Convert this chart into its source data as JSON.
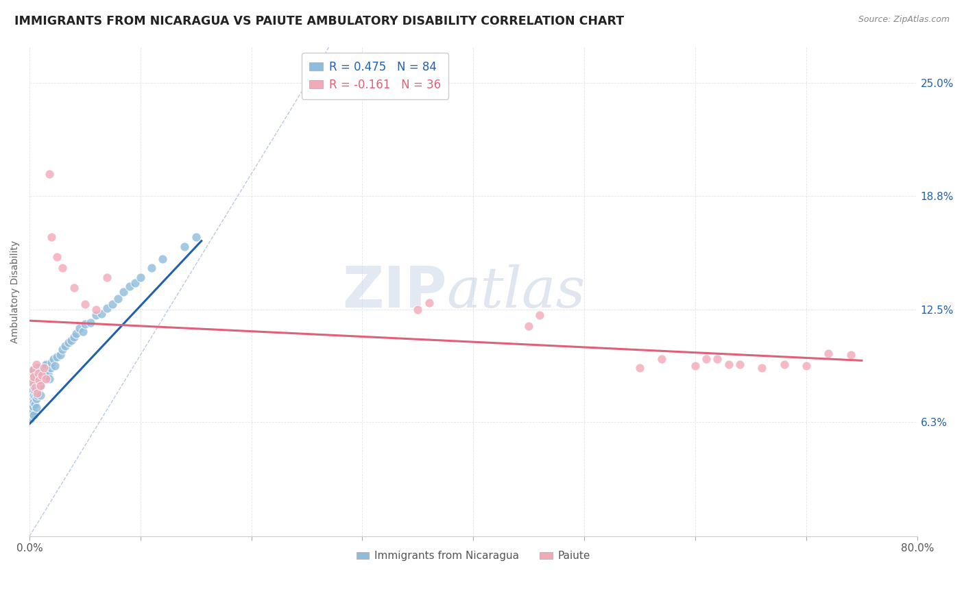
{
  "title": "IMMIGRANTS FROM NICARAGUA VS PAIUTE AMBULATORY DISABILITY CORRELATION CHART",
  "source": "Source: ZipAtlas.com",
  "ylabel": "Ambulatory Disability",
  "ytick_labels": [
    "6.3%",
    "12.5%",
    "18.8%",
    "25.0%"
  ],
  "ytick_values": [
    0.063,
    0.125,
    0.188,
    0.25
  ],
  "legend_blue": "R = 0.475   N = 84",
  "legend_pink": "R = -0.161   N = 36",
  "legend_label_blue": "Immigrants from Nicaragua",
  "legend_label_pink": "Paiute",
  "blue_color": "#8fbcdb",
  "pink_color": "#f2aab8",
  "blue_line_color": "#2060b0",
  "pink_line_color": "#e0607a",
  "diag_line_color": "#b0c0d8",
  "xlim": [
    0.0,
    0.8
  ],
  "ylim": [
    0.0,
    0.27
  ],
  "blue_trendline": [
    [
      0.0,
      0.062
    ],
    [
      0.155,
      0.163
    ]
  ],
  "pink_trendline": [
    [
      0.0,
      0.119
    ],
    [
      0.75,
      0.097
    ]
  ],
  "diag_line": [
    [
      0.0,
      0.0
    ],
    [
      0.27,
      0.27
    ]
  ],
  "blue_x": [
    0.001,
    0.001,
    0.001,
    0.001,
    0.001,
    0.001,
    0.001,
    0.001,
    0.001,
    0.001,
    0.002,
    0.002,
    0.002,
    0.002,
    0.002,
    0.002,
    0.002,
    0.003,
    0.003,
    0.003,
    0.003,
    0.003,
    0.003,
    0.004,
    0.004,
    0.004,
    0.004,
    0.004,
    0.005,
    0.005,
    0.005,
    0.005,
    0.006,
    0.006,
    0.006,
    0.006,
    0.007,
    0.007,
    0.007,
    0.008,
    0.008,
    0.008,
    0.009,
    0.009,
    0.01,
    0.01,
    0.01,
    0.011,
    0.012,
    0.013,
    0.014,
    0.015,
    0.015,
    0.017,
    0.018,
    0.019,
    0.02,
    0.022,
    0.023,
    0.025,
    0.028,
    0.03,
    0.032,
    0.035,
    0.038,
    0.04,
    0.042,
    0.045,
    0.048,
    0.05,
    0.055,
    0.06,
    0.065,
    0.07,
    0.075,
    0.08,
    0.085,
    0.09,
    0.095,
    0.1,
    0.11,
    0.12,
    0.14,
    0.15
  ],
  "blue_y": [
    0.072,
    0.075,
    0.068,
    0.08,
    0.078,
    0.082,
    0.07,
    0.076,
    0.065,
    0.085,
    0.073,
    0.079,
    0.083,
    0.068,
    0.075,
    0.087,
    0.071,
    0.076,
    0.081,
    0.069,
    0.085,
    0.072,
    0.09,
    0.078,
    0.074,
    0.083,
    0.067,
    0.092,
    0.08,
    0.073,
    0.086,
    0.077,
    0.082,
    0.076,
    0.089,
    0.071,
    0.084,
    0.078,
    0.093,
    0.079,
    0.085,
    0.09,
    0.082,
    0.087,
    0.083,
    0.078,
    0.091,
    0.086,
    0.089,
    0.092,
    0.094,
    0.088,
    0.095,
    0.09,
    0.087,
    0.093,
    0.096,
    0.098,
    0.094,
    0.099,
    0.1,
    0.103,
    0.105,
    0.107,
    0.108,
    0.11,
    0.112,
    0.115,
    0.113,
    0.117,
    0.118,
    0.122,
    0.123,
    0.126,
    0.128,
    0.131,
    0.135,
    0.138,
    0.14,
    0.143,
    0.148,
    0.153,
    0.16,
    0.165
  ],
  "pink_x": [
    0.002,
    0.003,
    0.004,
    0.005,
    0.006,
    0.007,
    0.008,
    0.009,
    0.01,
    0.011,
    0.013,
    0.015,
    0.018,
    0.02,
    0.025,
    0.03,
    0.04,
    0.05,
    0.06,
    0.07,
    0.35,
    0.36,
    0.45,
    0.46,
    0.55,
    0.57,
    0.6,
    0.61,
    0.62,
    0.63,
    0.64,
    0.66,
    0.68,
    0.7,
    0.72,
    0.74
  ],
  "pink_y": [
    0.085,
    0.092,
    0.088,
    0.082,
    0.095,
    0.079,
    0.09,
    0.086,
    0.083,
    0.089,
    0.093,
    0.087,
    0.2,
    0.165,
    0.154,
    0.148,
    0.137,
    0.128,
    0.125,
    0.143,
    0.125,
    0.129,
    0.116,
    0.122,
    0.093,
    0.098,
    0.094,
    0.098,
    0.098,
    0.095,
    0.095,
    0.093,
    0.095,
    0.094,
    0.101,
    0.1
  ]
}
